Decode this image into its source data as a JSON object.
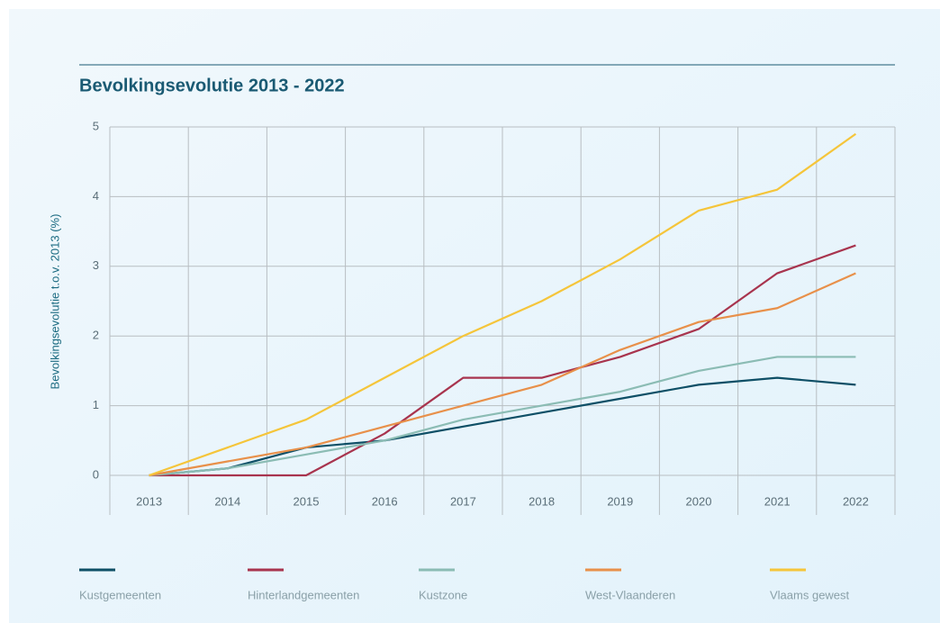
{
  "chart_data": {
    "type": "line",
    "title": "Bevolkingsevolutie 2013 - 2022",
    "y_label": "Bevolkingsevolutie t.o.v. 2013 (%)",
    "categories": [
      "2013",
      "2014",
      "2015",
      "2016",
      "2017",
      "2018",
      "2019",
      "2020",
      "2021",
      "2022"
    ],
    "series": [
      {
        "name": "Kustgemeenten",
        "color": "#0e4f66",
        "values": [
          0,
          0.1,
          0.4,
          0.5,
          0.7,
          0.9,
          1.1,
          1.3,
          1.4,
          1.3
        ]
      },
      {
        "name": "Hinterlandgemeenten",
        "color": "#a8344e",
        "values": [
          0,
          0,
          0,
          0.6,
          1.4,
          1.4,
          1.7,
          2.1,
          2.9,
          3.3
        ]
      },
      {
        "name": "Kustzone",
        "color": "#8bbcb4",
        "values": [
          0,
          0.1,
          0.3,
          0.5,
          0.8,
          1.0,
          1.2,
          1.5,
          1.7,
          1.7
        ]
      },
      {
        "name": "West-Vlaanderen",
        "color": "#e8904a",
        "values": [
          0,
          0.2,
          0.4,
          0.7,
          1.0,
          1.3,
          1.8,
          2.2,
          2.4,
          2.9
        ]
      },
      {
        "name": "Vlaams gewest",
        "color": "#f5c53a",
        "values": [
          0,
          0.4,
          0.8,
          1.4,
          2.0,
          2.5,
          3.1,
          3.8,
          4.1,
          4.9
        ]
      }
    ],
    "ylim": [
      0,
      5
    ],
    "yticks": [
      0,
      1,
      2,
      3,
      4,
      5
    ],
    "grid": true,
    "legend": "bottom"
  }
}
